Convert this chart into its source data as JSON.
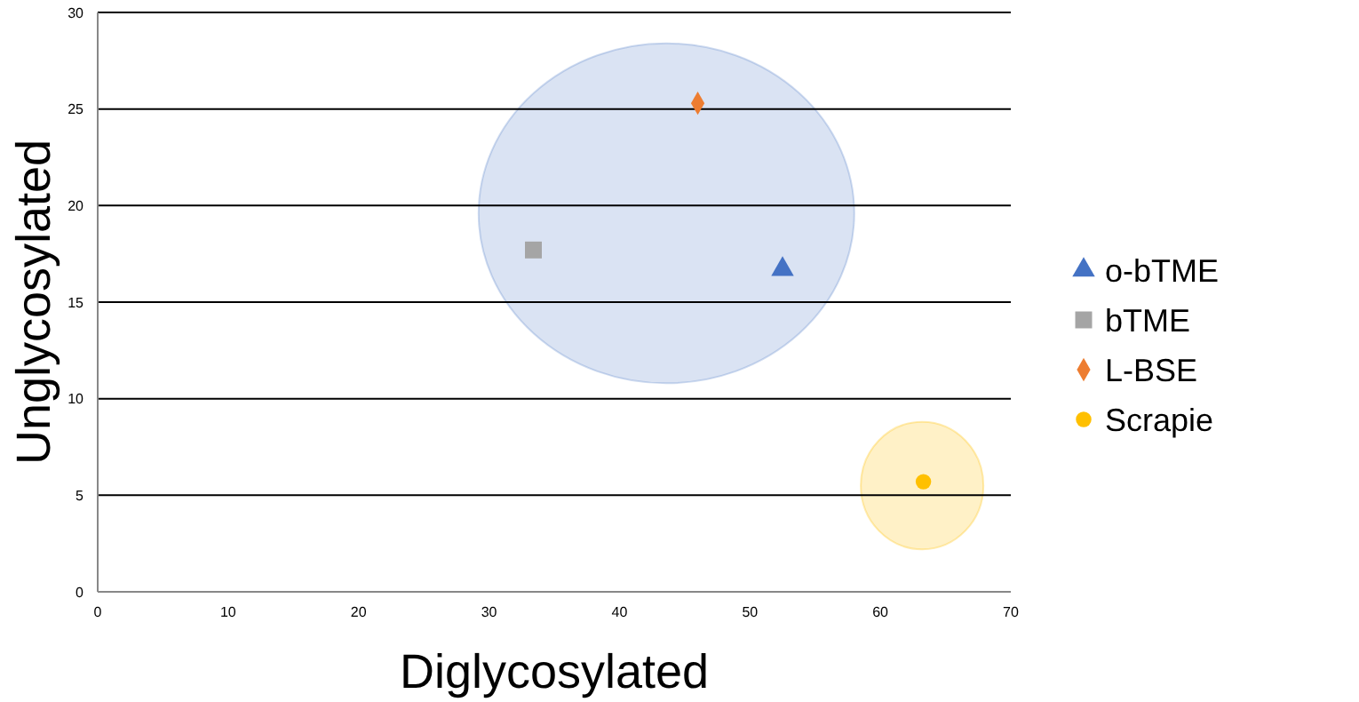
{
  "chart_data": {
    "type": "scatter",
    "xlabel": "Diglycosylated",
    "ylabel": "Unglycosylated",
    "xlim": [
      0,
      70
    ],
    "xticks": [
      0,
      10,
      20,
      30,
      40,
      50,
      60,
      70
    ],
    "ylim": [
      0,
      30
    ],
    "yticks": [
      0,
      5,
      10,
      15,
      20,
      25,
      30
    ],
    "grid": "y",
    "legend": "right",
    "series": [
      {
        "name": "o-bTME",
        "color": "#4472c4",
        "marker": "triangle",
        "x": [
          52.5
        ],
        "values": [
          16.7
        ]
      },
      {
        "name": "bTME",
        "color": "#a5a5a5",
        "marker": "square",
        "x": [
          33.4
        ],
        "values": [
          17.7
        ]
      },
      {
        "name": "L-BSE",
        "color": "#ed7d31",
        "marker": "diamond",
        "x": [
          46
        ],
        "values": [
          25.3
        ]
      },
      {
        "name": "Scrapie",
        "color": "#ffc000",
        "marker": "circle",
        "x": [
          63.3
        ],
        "values": [
          5.7
        ]
      }
    ]
  }
}
